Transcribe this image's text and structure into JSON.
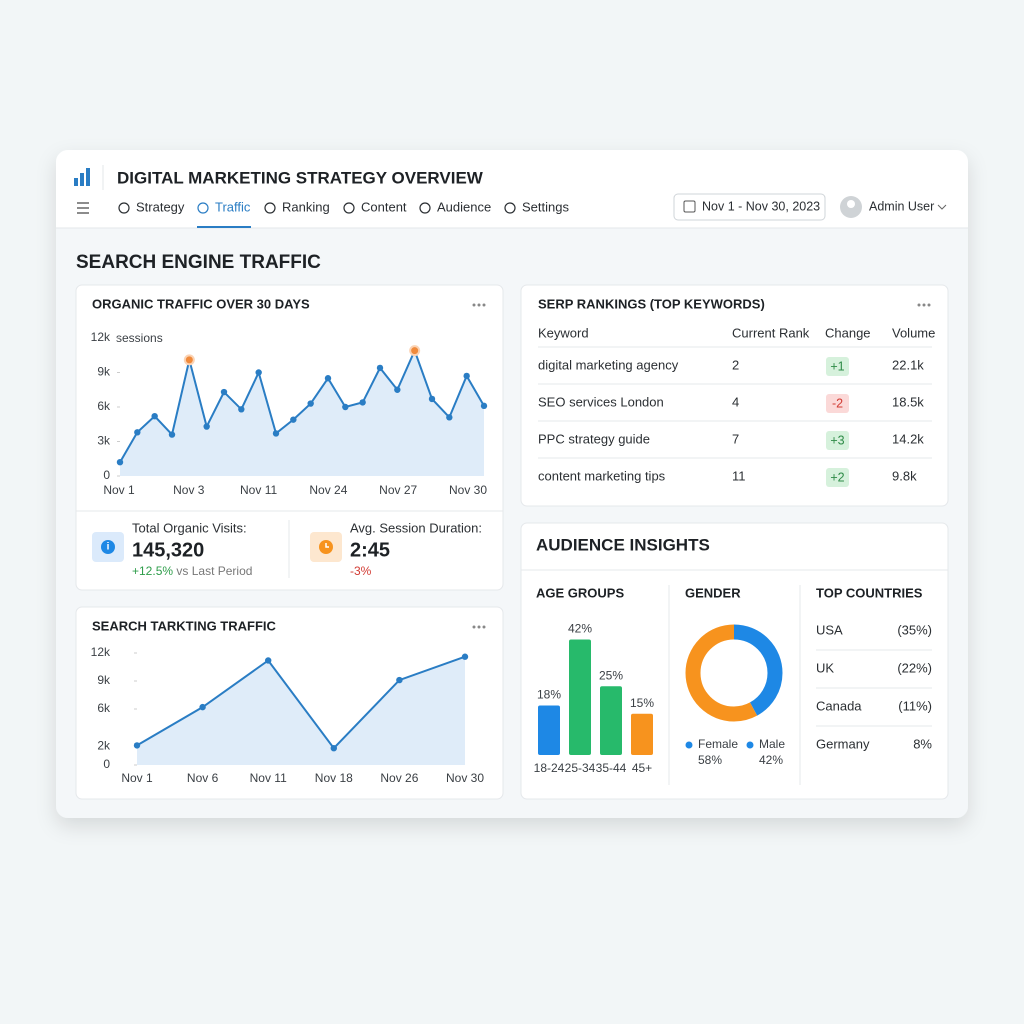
{
  "header": {
    "title": "DIGITAL MARKETING STRATEGY OVERVIEW",
    "nav": [
      "Strategy",
      "Traffic",
      "Ranking",
      "Content",
      "Audience",
      "Settings"
    ],
    "date_range": "Nov 1 - Nov 30, 2023",
    "user": "Admin User"
  },
  "section_title": "SEARCH ENGINE TRAFFIC",
  "organic": {
    "chart_data": {
      "type": "line",
      "title": "ORGANIC TRAFFIC OVER 30 DAYS",
      "y_unit": "sessions",
      "x_labels": [
        "Nov 1",
        "Nov 3",
        "Nov 11",
        "Nov 24",
        "Nov 27",
        "Nov 30"
      ],
      "values": [
        1200,
        3800,
        5200,
        3600,
        10100,
        4300,
        7300,
        5800,
        9000,
        3700,
        4900,
        6300,
        8500,
        6000,
        6400,
        9400,
        7500,
        10900,
        6700,
        5100,
        8700,
        6100
      ],
      "highlight": [
        4,
        17
      ],
      "color": "#2a7dc4",
      "highlight_color": "#f08a3c",
      "ylim": [
        0,
        12000
      ],
      "yticks": [
        0,
        {
          "value": 3000,
          "label": "3k"
        },
        {
          "value": 6000,
          "label": "6k"
        },
        {
          "value": 9000,
          "label": "9k"
        },
        {
          "value": 12000,
          "label": "12k"
        }
      ]
    },
    "stats": [
      {
        "label": "Total Organic Visits:",
        "value": "145,320",
        "change": "+12.5%",
        "note": "vs Last Period"
      },
      {
        "label": "Avg. Session Duration:",
        "value": "2:45",
        "change": "-3%"
      }
    ]
  },
  "search": {
    "chart_data": {
      "type": "line",
      "title": "SEARCH TARKTING TRAFFIC",
      "categories": [
        "Nov 1",
        "Nov 6",
        "Nov 11",
        "Nov 18",
        "Nov 26",
        "Nov 30"
      ],
      "values": [
        2100,
        6200,
        11200,
        1800,
        9100,
        11600
      ],
      "color": "#2a7dc4",
      "ylim": [
        0,
        12000
      ],
      "yticks": [
        0,
        {
          "value": 2000,
          "label": "2k"
        },
        {
          "value": 6000,
          "label": "6k"
        },
        {
          "value": 9000,
          "label": "9k"
        },
        {
          "value": 12000,
          "label": "12k"
        }
      ]
    }
  },
  "serp": {
    "title": "SERP RANKINGS (TOP KEYWORDS)",
    "columns": [
      "Keyword",
      "Current Rank",
      "Change",
      "Volume"
    ],
    "rows": [
      [
        "digital marketing agency",
        "2",
        "+1",
        "22.1k"
      ],
      [
        "SEO services London",
        "4",
        "-2",
        "18.5k"
      ],
      [
        "PPC strategy guide",
        "7",
        "+3",
        "14.2k"
      ],
      [
        "content marketing tips",
        "11",
        "+2",
        "9.8k"
      ]
    ]
  },
  "audience": {
    "title": "AUDIENCE INSIGHTS",
    "age": {
      "chart_data": {
        "type": "bar",
        "title": "AGE GROUPS",
        "categories": [
          "18-24",
          "25-34",
          "35-44",
          "45+"
        ],
        "values": [
          18,
          42,
          25,
          15
        ],
        "value_labels": [
          "18%",
          "42%",
          "25%",
          "15%"
        ],
        "colors": [
          "#1e88e5",
          "#27ba6b",
          "#27ba6b",
          "#f7931e"
        ]
      }
    },
    "gender": {
      "chart_data": {
        "type": "donut",
        "title": "GENDER",
        "categories": [
          "Female",
          "Male"
        ],
        "values": [
          58,
          42
        ],
        "value_labels": [
          "58%",
          "42%"
        ],
        "colors": [
          "#f7931e",
          "#1e88e5"
        ]
      }
    },
    "countries": {
      "title": "TOP COUNTRIES",
      "rows": [
        [
          "USA",
          "(35%)"
        ],
        [
          "UK",
          "(22%)"
        ],
        [
          "Canada",
          "(11%)"
        ],
        [
          "Germany",
          "8%"
        ]
      ]
    }
  }
}
